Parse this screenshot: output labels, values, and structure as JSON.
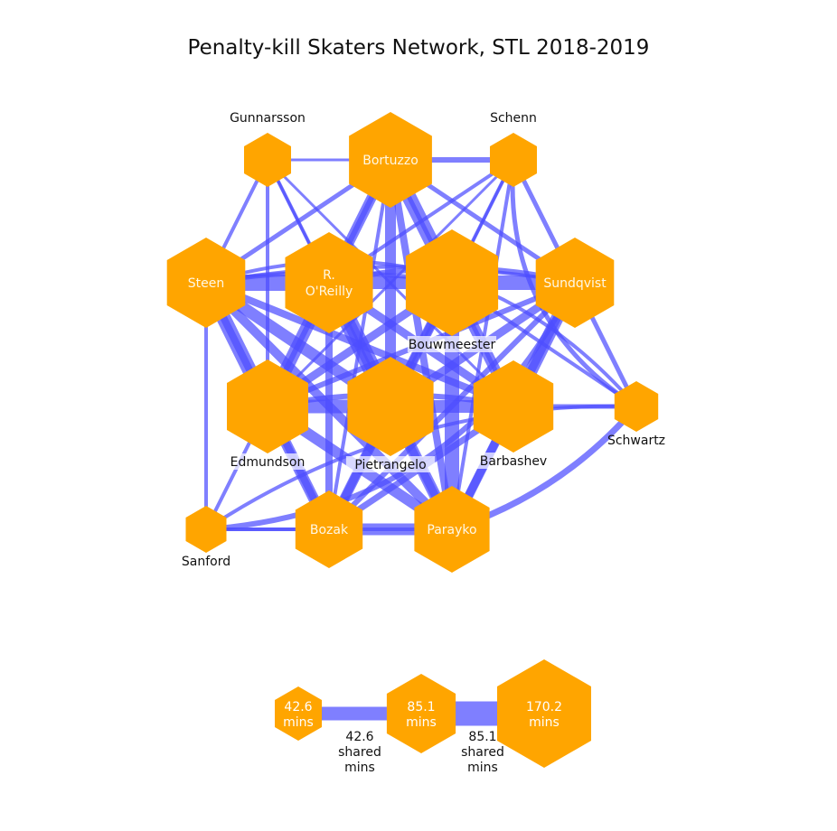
{
  "title": "Penalty-kill Skaters Network, STL 2018-2019",
  "colors": {
    "node": "#ffa500",
    "edge": "#4d4dff"
  },
  "nodes": [
    {
      "id": "gunnarsson",
      "label": "Gunnarsson",
      "label_style": "outside"
    },
    {
      "id": "bortuzzo",
      "label": "Bortuzzo",
      "label_style": "inside"
    },
    {
      "id": "schenn",
      "label": "Schenn",
      "label_style": "outside"
    },
    {
      "id": "steen",
      "label": "Steen",
      "label_style": "inside"
    },
    {
      "id": "oreilly",
      "label": "R.\nO'Reilly",
      "label_style": "inside"
    },
    {
      "id": "bouwmeester",
      "label": "Bouwmeester",
      "label_style": "box"
    },
    {
      "id": "sundqvist",
      "label": "Sundqvist",
      "label_style": "inside"
    },
    {
      "id": "edmundson",
      "label": "Edmundson",
      "label_style": "box"
    },
    {
      "id": "pietrangelo",
      "label": "Pietrangelo",
      "label_style": "box"
    },
    {
      "id": "barbashev",
      "label": "Barbashev",
      "label_style": "box"
    },
    {
      "id": "schwartz",
      "label": "Schwartz",
      "label_style": "outside"
    },
    {
      "id": "sanford",
      "label": "Sanford",
      "label_style": "outside"
    },
    {
      "id": "bozak",
      "label": "Bozak",
      "label_style": "inside"
    },
    {
      "id": "parayko",
      "label": "Parayko",
      "label_style": "inside"
    }
  ],
  "legend": {
    "nodes": [
      {
        "label": "42.6\nmins",
        "value": 42.6
      },
      {
        "label": "85.1\nmins",
        "value": 85.1
      },
      {
        "label": "170.2\nmins",
        "value": 170.2
      }
    ],
    "edges": [
      {
        "label": "42.6\nshared\nmins",
        "value": 42.6
      },
      {
        "label": "85.1\nshared\nmins",
        "value": 85.1
      }
    ]
  }
}
